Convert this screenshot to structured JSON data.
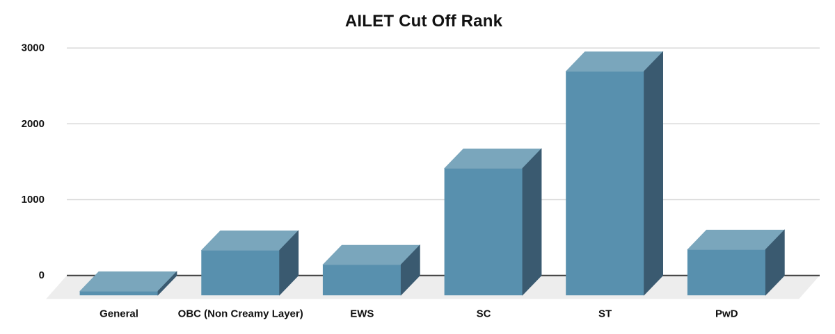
{
  "chart_data": {
    "type": "bar",
    "variant": "3d-column",
    "title": "AILET Cut Off Rank",
    "categories": [
      "General",
      "OBC (Non Creamy Layer)",
      "EWS",
      "SC",
      "ST",
      "PwD"
    ],
    "values": [
      50,
      590,
      400,
      1670,
      2950,
      600
    ],
    "xlabel": "",
    "ylabel": "",
    "ylim": [
      0,
      3000
    ],
    "yticks": [
      0,
      1000,
      2000,
      3000
    ],
    "grid": true,
    "legend_position": "none",
    "colors": {
      "bar_top": "#7AA6BC",
      "bar_front": "#5890AE",
      "bar_side": "#3A5A70",
      "floor": "#EDEDED",
      "gridline": "#D9D9D9",
      "zero_line": "#3F3F3F",
      "text": "#111111",
      "background": "#FFFFFF"
    }
  }
}
